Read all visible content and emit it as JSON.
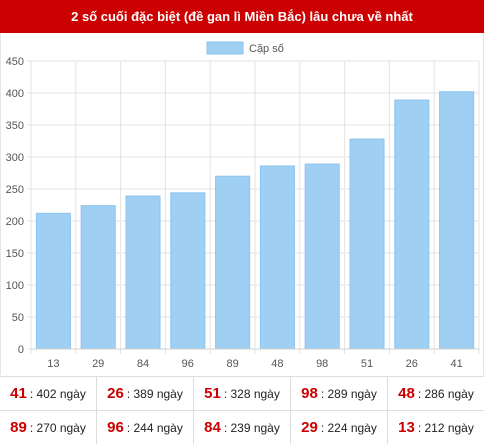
{
  "header": {
    "title": "2 số cuối đặc biệt (đề gan lì Miền Bắc) lâu chưa về nhất"
  },
  "colors": {
    "header_bg": "#cc0000",
    "bar_fill": "#9fcff3",
    "bar_stroke": "#8cc4ef",
    "number": "#cc0000"
  },
  "chart_data": {
    "type": "bar",
    "categories": [
      "13",
      "29",
      "84",
      "96",
      "89",
      "48",
      "98",
      "51",
      "26",
      "41"
    ],
    "series": [
      {
        "name": "Cặp số",
        "values": [
          212,
          224,
          239,
          244,
          270,
          286,
          289,
          328,
          389,
          402
        ]
      }
    ],
    "ylim": [
      0,
      450
    ],
    "yticks": [
      0,
      50,
      100,
      150,
      200,
      250,
      300,
      350,
      400,
      450
    ],
    "grid": true,
    "legend": "top-center"
  },
  "stats": {
    "rows": [
      [
        {
          "num": "41",
          "text": ": 402 ngày"
        },
        {
          "num": "26",
          "text": ": 389 ngày"
        },
        {
          "num": "51",
          "text": ": 328 ngày"
        },
        {
          "num": "98",
          "text": ": 289 ngày"
        },
        {
          "num": "48",
          "text": ": 286 ngày"
        }
      ],
      [
        {
          "num": "89",
          "text": ": 270 ngày"
        },
        {
          "num": "96",
          "text": ": 244 ngày"
        },
        {
          "num": "84",
          "text": ": 239 ngày"
        },
        {
          "num": "29",
          "text": ": 224 ngày"
        },
        {
          "num": "13",
          "text": ": 212 ngày"
        }
      ]
    ]
  }
}
